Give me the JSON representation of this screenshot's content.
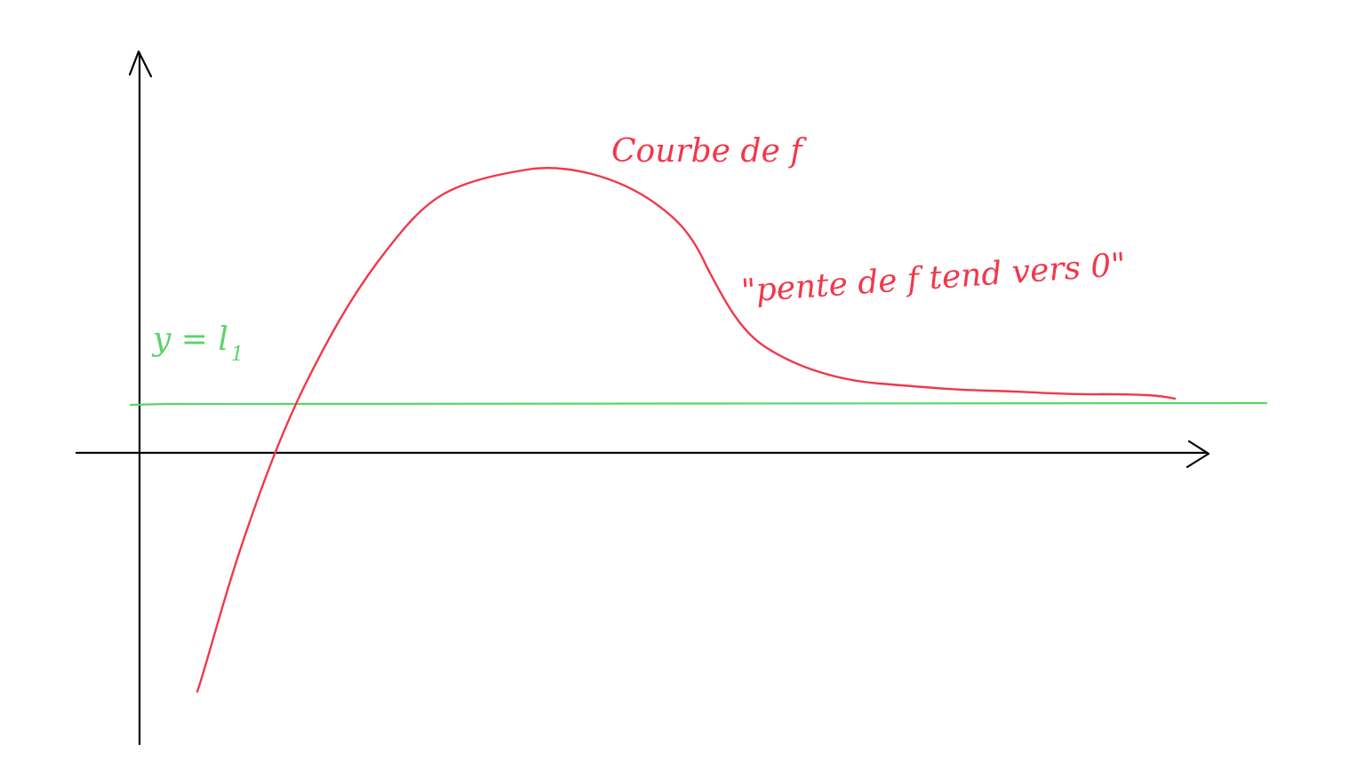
{
  "colors": {
    "axes": "#000000",
    "curve": "#f0384a",
    "asymptote": "#5cd36a",
    "background": "#ffffff"
  },
  "labels": {
    "curve_label": "Courbe de f",
    "slope_note": "\"pente de f tend vers 0\"",
    "asymptote_label": {
      "lhs": "y = l",
      "subscript": "1"
    }
  },
  "elements": {
    "x_axis": "x-axis",
    "y_axis": "y-axis",
    "curve": "curve-of-f",
    "asymptote": "horizontal-asymptote"
  }
}
